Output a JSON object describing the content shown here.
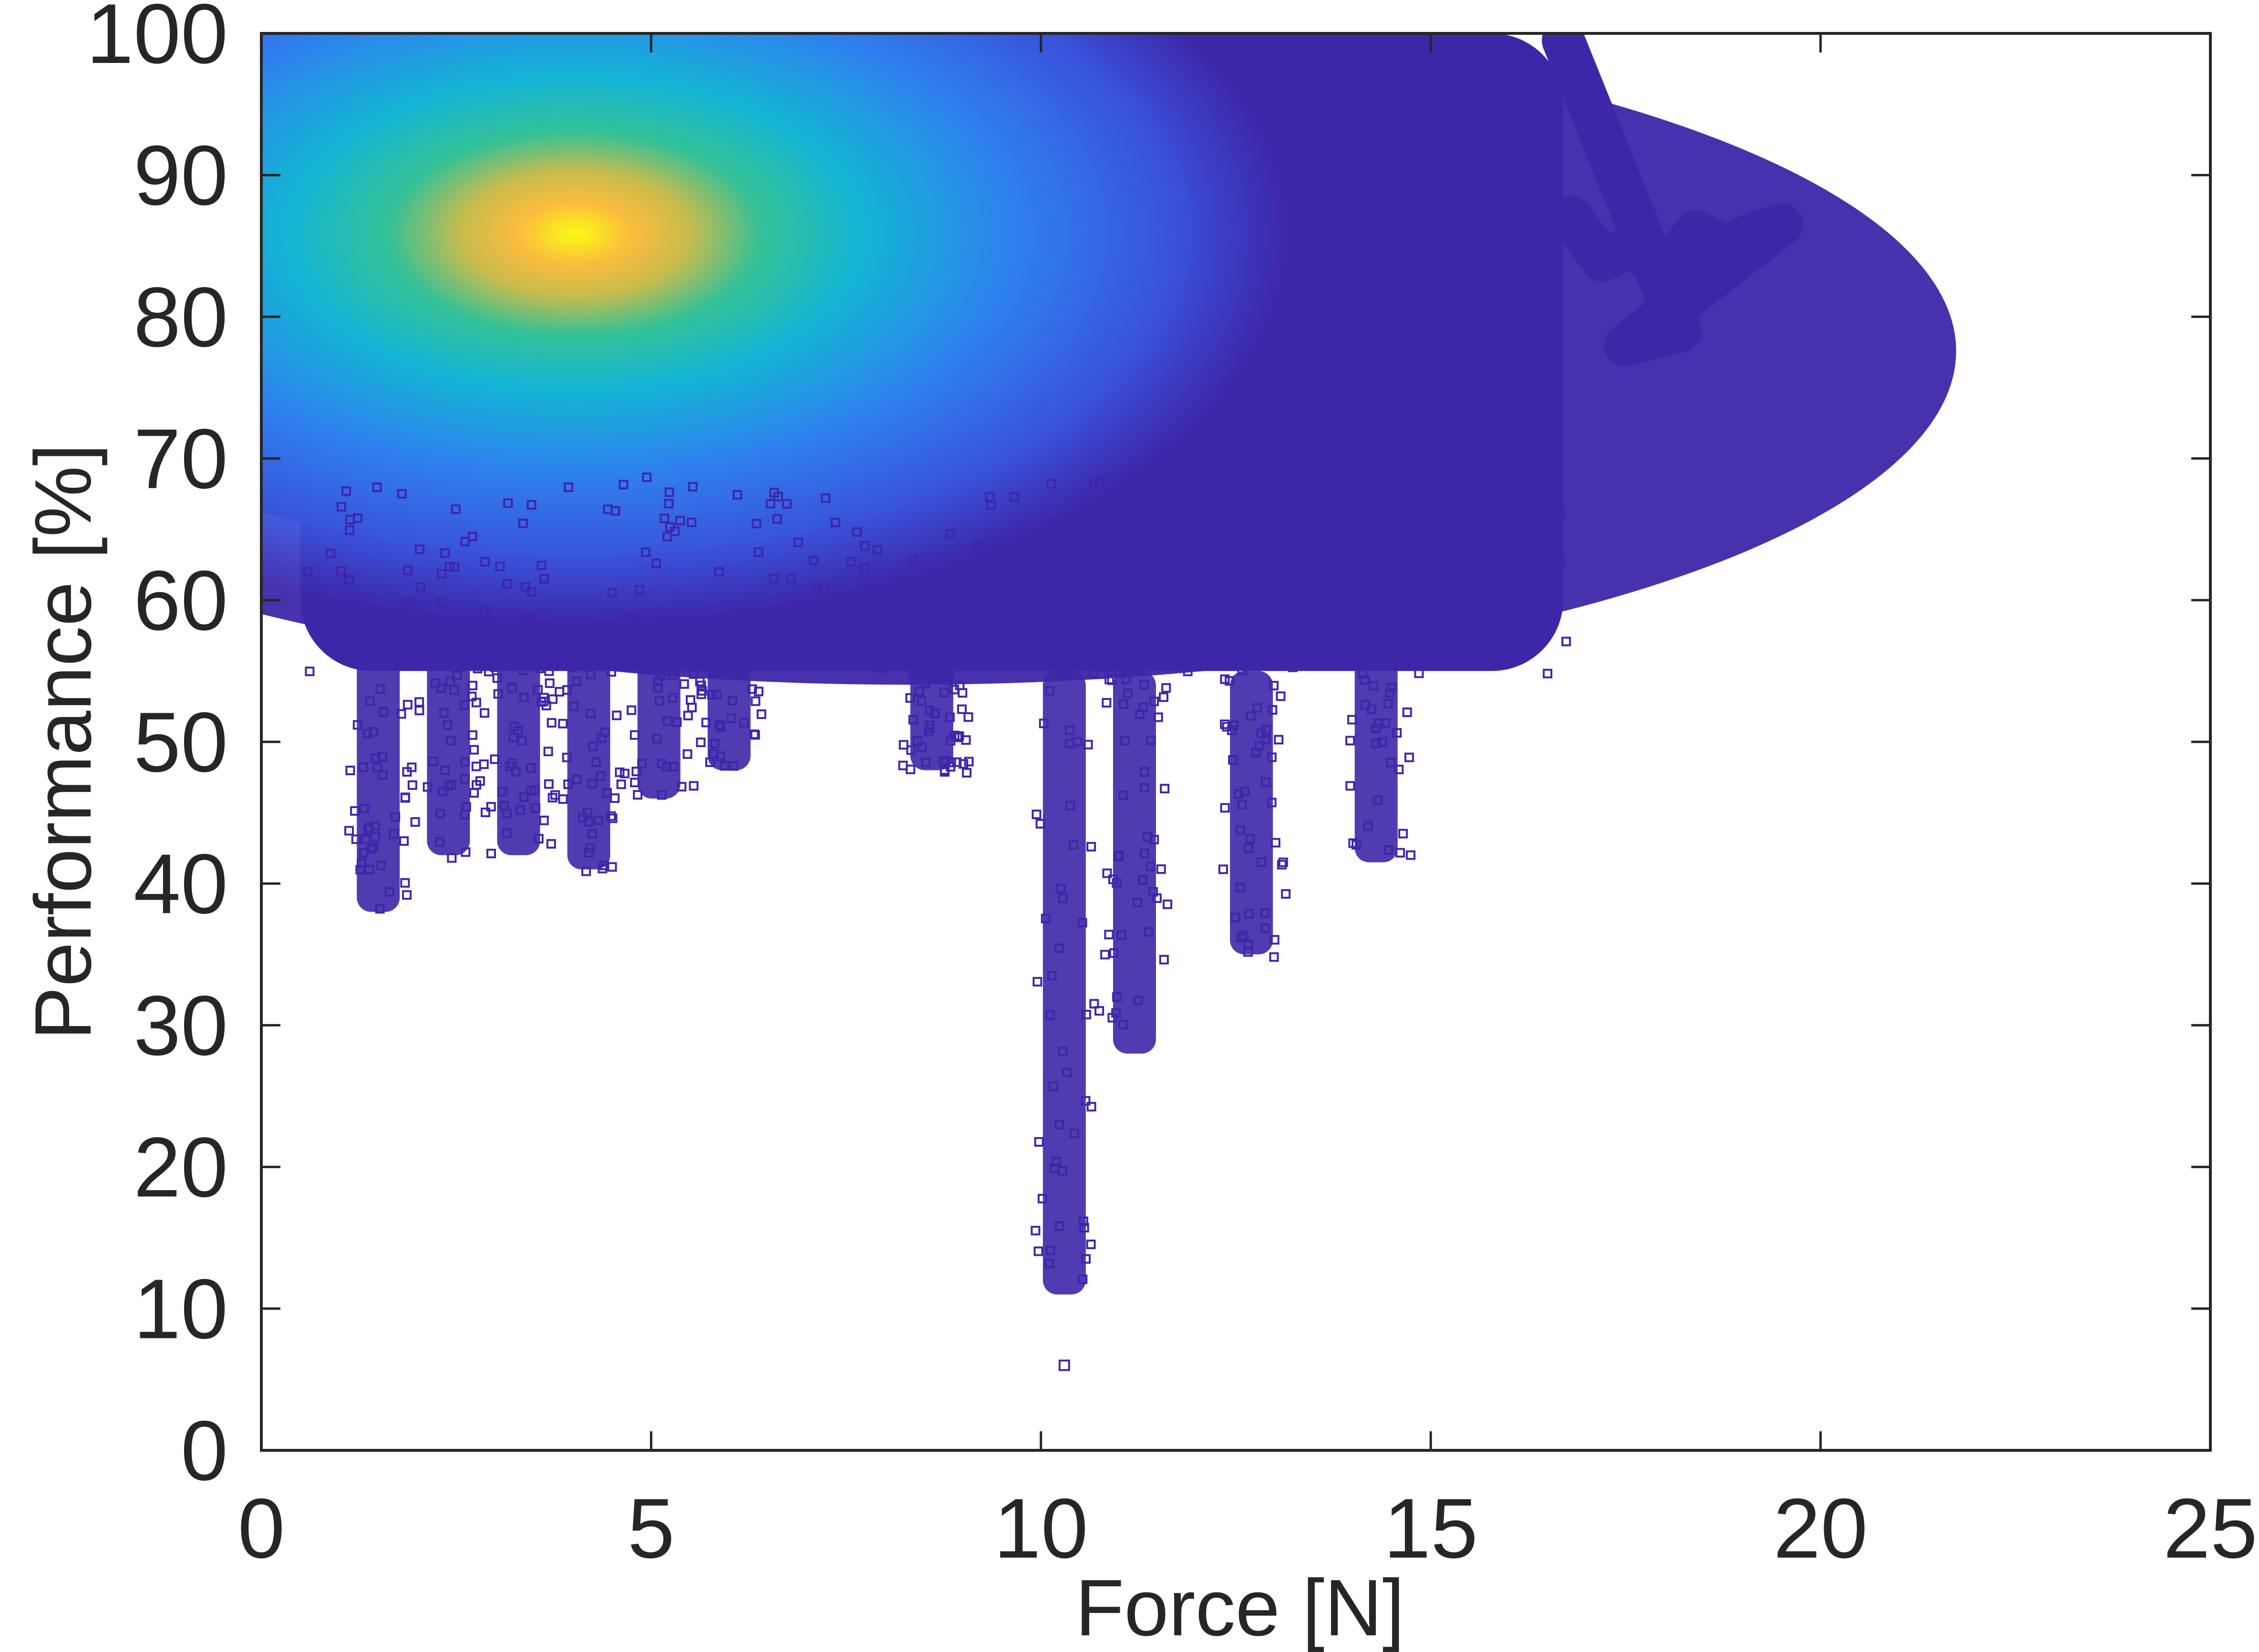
{
  "chart_data": {
    "type": "scatter",
    "title": "",
    "xlabel": "Force [N]",
    "ylabel": "Performance [%]",
    "xlim": [
      0,
      25
    ],
    "ylim": [
      0,
      100
    ],
    "x_ticks": [
      "0",
      "5",
      "10",
      "15",
      "20",
      "25"
    ],
    "y_ticks": [
      "0",
      "10",
      "20",
      "30",
      "40",
      "50",
      "60",
      "70",
      "80",
      "90",
      "100"
    ],
    "grid": false,
    "marker": "open-square",
    "color_encoding": "point density",
    "colormap": [
      "#3e26a8",
      "#2f64f3",
      "#14b5d5",
      "#34c196",
      "#c7bc4d",
      "#fbbc3d",
      "#f9fb15"
    ],
    "density_peak": {
      "x": 4.0,
      "y": 86
    },
    "dense_region": {
      "x": [
        0.5,
        16.7
      ],
      "y": [
        55,
        100
      ]
    },
    "tail_points": [
      [
        16.8,
        87
      ],
      [
        17.2,
        84
      ],
      [
        17.6,
        85
      ],
      [
        18.0,
        83
      ],
      [
        18.4,
        86
      ],
      [
        18.8,
        85
      ],
      [
        19.2,
        86
      ],
      [
        19.5,
        86.5
      ],
      [
        17.5,
        78
      ],
      [
        18.2,
        79
      ],
      [
        16.7,
        99.5
      ]
    ],
    "low_streaks": [
      {
        "x": 1.5,
        "y": [
          38,
          56
        ]
      },
      {
        "x": 2.4,
        "y": [
          42,
          58
        ]
      },
      {
        "x": 3.3,
        "y": [
          42,
          58
        ]
      },
      {
        "x": 4.2,
        "y": [
          41,
          60
        ]
      },
      {
        "x": 5.1,
        "y": [
          46,
          60
        ]
      },
      {
        "x": 6.0,
        "y": [
          48,
          62
        ]
      },
      {
        "x": 8.6,
        "y": [
          48,
          56
        ]
      },
      {
        "x": 10.3,
        "y": [
          11,
          55
        ]
      },
      {
        "x": 11.2,
        "y": [
          28,
          55
        ]
      },
      {
        "x": 12.7,
        "y": [
          35,
          55
        ]
      },
      {
        "x": 14.3,
        "y": [
          41.5,
          68
        ]
      }
    ],
    "outliers": [
      [
        10.3,
        6
      ]
    ]
  }
}
